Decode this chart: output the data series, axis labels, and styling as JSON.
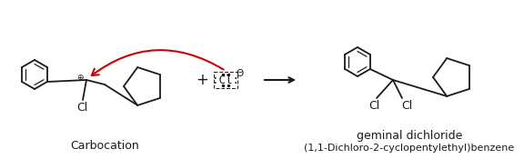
{
  "background_color": "#ffffff",
  "line_color": "#1a1a1a",
  "red_arrow_color": "#cc0000",
  "carbocation_label": "Carbocation",
  "product_label1": "geminal dichloride",
  "product_label2": "(1,1-Dichloro-2-cyclopentylethyl)benzene",
  "font_size_labels": 9,
  "font_size_small": 8
}
